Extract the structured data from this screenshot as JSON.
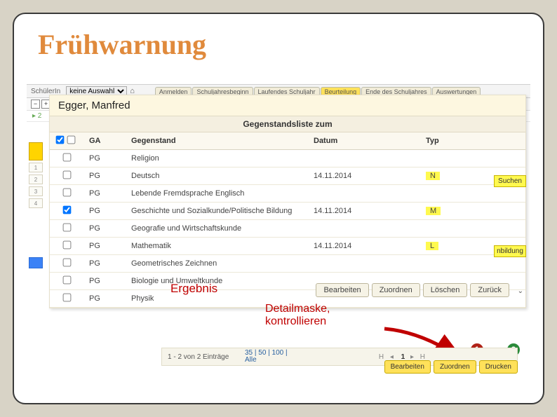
{
  "page_title": "Frühwarnung",
  "topbar": {
    "label": "SchülerIn",
    "select_value": "keine Auswahl",
    "tabs": [
      "Anmelden",
      "Schuljahresbeginn",
      "Laufendes Schuljahr",
      "Beurteilung",
      "Ende des Schuljahres",
      "Auswertungen"
    ],
    "active_tab_index": 3
  },
  "panel": {
    "student": "Egger, Manfred",
    "subhead": "Gegenstandsliste zum",
    "columns": {
      "chk": "",
      "ga": "GA",
      "geg": "Gegenstand",
      "dat": "Datum",
      "typ": "Typ"
    },
    "rows": [
      {
        "chk": false,
        "ga": "PG",
        "geg": "Religion",
        "dat": "",
        "typ": ""
      },
      {
        "chk": false,
        "ga": "PG",
        "geg": "Deutsch",
        "dat": "14.11.2014",
        "typ": "N"
      },
      {
        "chk": false,
        "ga": "PG",
        "geg": "Lebende Fremdsprache Englisch",
        "dat": "",
        "typ": ""
      },
      {
        "chk": true,
        "ga": "PG",
        "geg": "Geschichte und Sozialkunde/Politische Bildung",
        "dat": "14.11.2014",
        "typ": "M"
      },
      {
        "chk": false,
        "ga": "PG",
        "geg": "Geografie und Wirtschaftskunde",
        "dat": "",
        "typ": ""
      },
      {
        "chk": false,
        "ga": "PG",
        "geg": "Mathematik",
        "dat": "14.11.2014",
        "typ": "L"
      },
      {
        "chk": false,
        "ga": "PG",
        "geg": "Geometrisches Zeichnen",
        "dat": "",
        "typ": ""
      },
      {
        "chk": false,
        "ga": "PG",
        "geg": "Biologie und Umweltkunde",
        "dat": "",
        "typ": ""
      },
      {
        "chk": false,
        "ga": "PG",
        "geg": "Physik",
        "dat": "",
        "typ": ""
      }
    ]
  },
  "labels": {
    "ergebnis": "Ergebnis",
    "detail1": "Detailmaske,",
    "detail2": "kontrollieren",
    "suchen": "Suchen",
    "ibil": "nbildung"
  },
  "buttons": {
    "row": [
      "Bearbeiten",
      "Zuordnen",
      "Löschen",
      "Zurück"
    ],
    "bottom": [
      "Bearbeiten",
      "Zuordnen",
      "Drucken"
    ]
  },
  "pager": {
    "entries": "1 - 2 von 2 Einträge",
    "perpage_top": "35 | 50 | 100 |",
    "perpage_all": "Alle",
    "nav_page": "1"
  },
  "circles": {
    "c1": "1",
    "c2": "2"
  },
  "colors": {
    "title": "#e08a3c",
    "highlight": "#fff94f",
    "red": "#c00000"
  }
}
